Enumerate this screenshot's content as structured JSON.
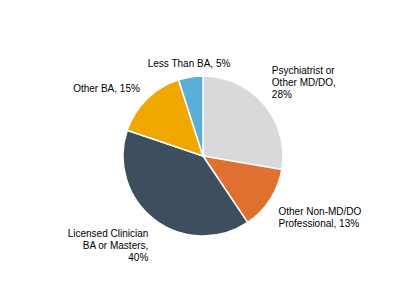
{
  "chart_data": {
    "type": "pie",
    "categories": [
      "Psychiatrist or\nOther MD/DO,\n28%",
      "Other Non-MD/DO\nProfessional, 13%",
      "Licensed Clinician\nBA or Masters,\n40%",
      "Other BA, 15%",
      "Less Than BA, 5%"
    ],
    "values": [
      28,
      13,
      40,
      15,
      5
    ],
    "colors": [
      "#d9d9d9",
      "#e07030",
      "#3d4f5e",
      "#f0a800",
      "#5bafd6"
    ]
  }
}
